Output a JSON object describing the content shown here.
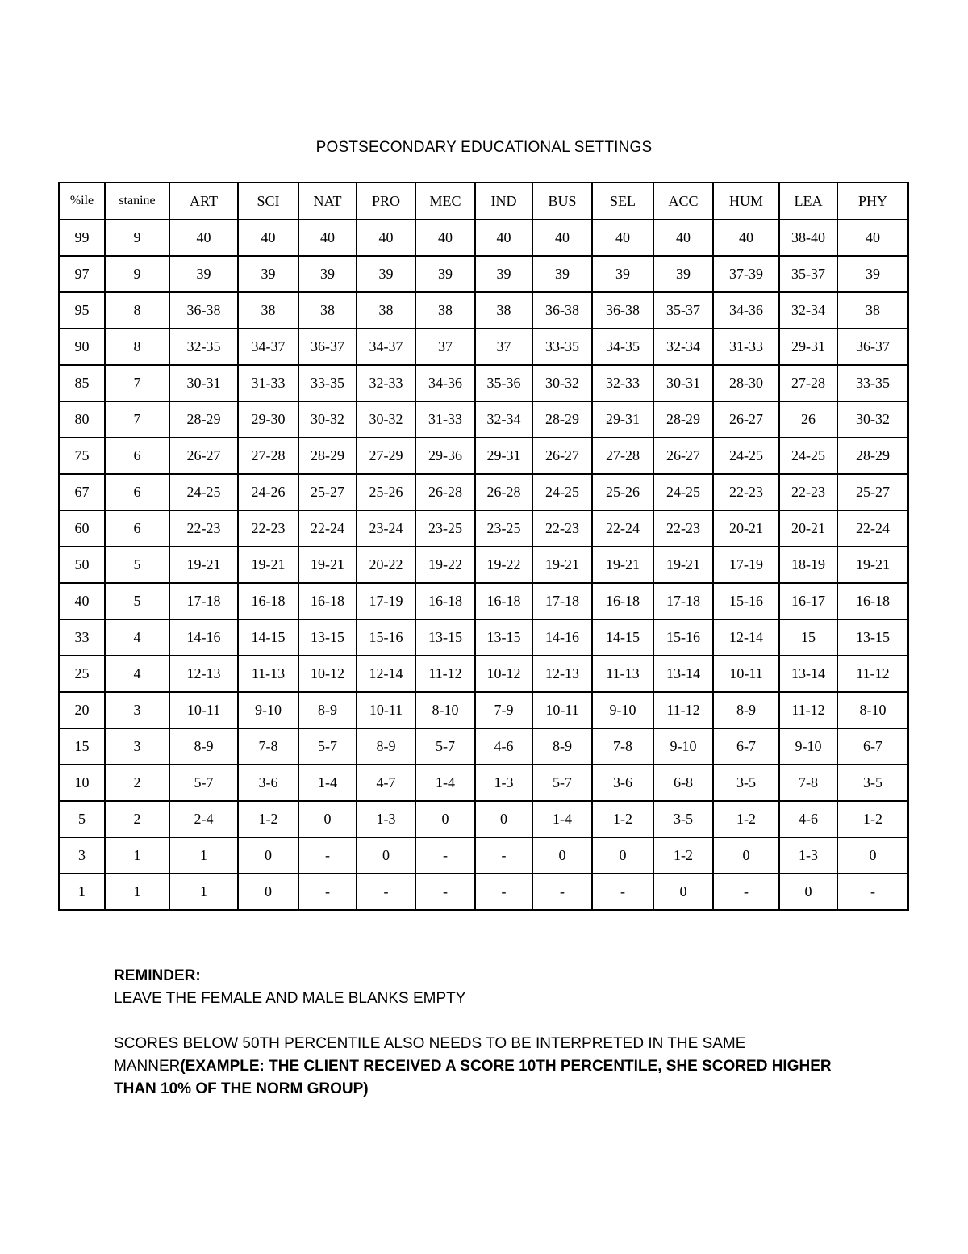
{
  "title": "POSTSECONDARY EDUCATIONAL SETTINGS",
  "table": {
    "headers": [
      "%ile",
      "stanine",
      "ART",
      "SCI",
      "NAT",
      "PRO",
      "MEC",
      "IND",
      "BUS",
      "SEL",
      "ACC",
      "HUM",
      "LEA",
      "PHY"
    ],
    "rows": [
      [
        "99",
        "9",
        "40",
        "40",
        "40",
        "40",
        "40",
        "40",
        "40",
        "40",
        "40",
        "40",
        "38-40",
        "40"
      ],
      [
        "97",
        "9",
        "39",
        "39",
        "39",
        "39",
        "39",
        "39",
        "39",
        "39",
        "39",
        "37-39",
        "35-37",
        "39"
      ],
      [
        "95",
        "8",
        "36-38",
        "38",
        "38",
        "38",
        "38",
        "38",
        "36-38",
        "36-38",
        "35-37",
        "34-36",
        "32-34",
        "38"
      ],
      [
        "90",
        "8",
        "32-35",
        "34-37",
        "36-37",
        "34-37",
        "37",
        "37",
        "33-35",
        "34-35",
        "32-34",
        "31-33",
        "29-31",
        "36-37"
      ],
      [
        "85",
        "7",
        "30-31",
        "31-33",
        "33-35",
        "32-33",
        "34-36",
        "35-36",
        "30-32",
        "32-33",
        "30-31",
        "28-30",
        "27-28",
        "33-35"
      ],
      [
        "80",
        "7",
        "28-29",
        "29-30",
        "30-32",
        "30-32",
        "31-33",
        "32-34",
        "28-29",
        "29-31",
        "28-29",
        "26-27",
        "26",
        "30-32"
      ],
      [
        "75",
        "6",
        "26-27",
        "27-28",
        "28-29",
        "27-29",
        "29-36",
        "29-31",
        "26-27",
        "27-28",
        "26-27",
        "24-25",
        "24-25",
        "28-29"
      ],
      [
        "67",
        "6",
        "24-25",
        "24-26",
        "25-27",
        "25-26",
        "26-28",
        "26-28",
        "24-25",
        "25-26",
        "24-25",
        "22-23",
        "22-23",
        "25-27"
      ],
      [
        "60",
        "6",
        "22-23",
        "22-23",
        "22-24",
        "23-24",
        "23-25",
        "23-25",
        "22-23",
        "22-24",
        "22-23",
        "20-21",
        "20-21",
        "22-24"
      ],
      [
        "50",
        "5",
        "19-21",
        "19-21",
        "19-21",
        "20-22",
        "19-22",
        "19-22",
        "19-21",
        "19-21",
        "19-21",
        "17-19",
        "18-19",
        "19-21"
      ],
      [
        "40",
        "5",
        "17-18",
        "16-18",
        "16-18",
        "17-19",
        "16-18",
        "16-18",
        "17-18",
        "16-18",
        "17-18",
        "15-16",
        "16-17",
        "16-18"
      ],
      [
        "33",
        "4",
        "14-16",
        "14-15",
        "13-15",
        "15-16",
        "13-15",
        "13-15",
        "14-16",
        "14-15",
        "15-16",
        "12-14",
        "15",
        "13-15"
      ],
      [
        "25",
        "4",
        "12-13",
        "11-13",
        "10-12",
        "12-14",
        "11-12",
        "10-12",
        "12-13",
        "11-13",
        "13-14",
        "10-11",
        "13-14",
        "11-12"
      ],
      [
        "20",
        "3",
        "10-11",
        "9-10",
        "8-9",
        "10-11",
        "8-10",
        "7-9",
        "10-11",
        "9-10",
        "11-12",
        "8-9",
        "11-12",
        "8-10"
      ],
      [
        "15",
        "3",
        "8-9",
        "7-8",
        "5-7",
        "8-9",
        "5-7",
        "4-6",
        "8-9",
        "7-8",
        "9-10",
        "6-7",
        "9-10",
        "6-7"
      ],
      [
        "10",
        "2",
        "5-7",
        "3-6",
        "1-4",
        "4-7",
        "1-4",
        "1-3",
        "5-7",
        "3-6",
        "6-8",
        "3-5",
        "7-8",
        "3-5"
      ],
      [
        "5",
        "2",
        "2-4",
        "1-2",
        "0",
        "1-3",
        "0",
        "0",
        "1-4",
        "1-2",
        "3-5",
        "1-2",
        "4-6",
        "1-2"
      ],
      [
        "3",
        "1",
        "1",
        "0",
        "-",
        "0",
        "-",
        "-",
        "0",
        "0",
        "1-2",
        "0",
        "1-3",
        "0"
      ],
      [
        "1",
        "1",
        "1",
        "0",
        "-",
        "-",
        "-",
        "-",
        "-",
        "-",
        "0",
        "-",
        "0",
        "-"
      ]
    ]
  },
  "notes": {
    "reminder_label": "REMINDER:",
    "reminder_text": "LEAVE THE FEMALE AND MALE BLANKS EMPTY",
    "scores_text": "SCORES BELOW 50TH PERCENTILE ALSO NEEDS TO BE INTERPRETED IN THE SAME MANNER",
    "example_text": "(EXAMPLE: THE CLIENT RECEIVED A SCORE 10TH PERCENTILE, SHE SCORED HIGHER THAN 10% OF THE NORM GROUP)"
  }
}
